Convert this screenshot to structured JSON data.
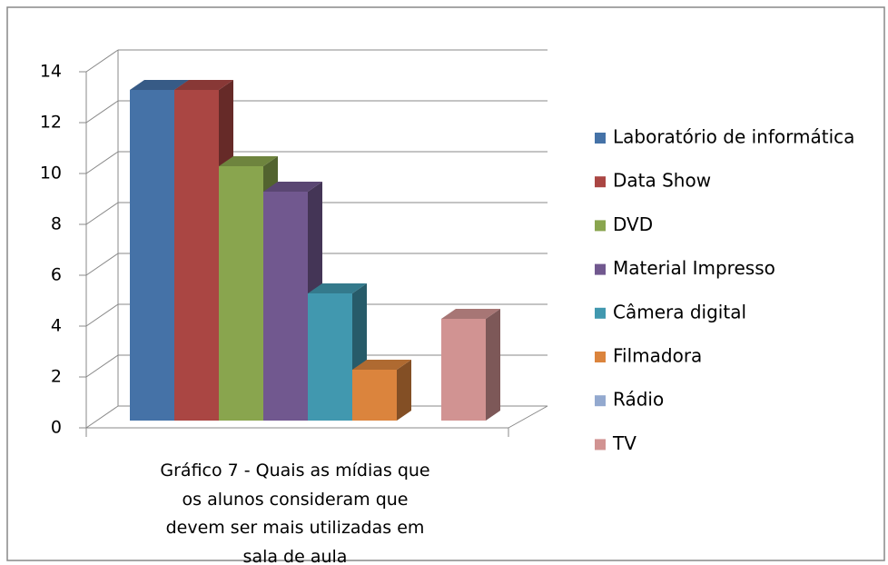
{
  "chart_data": {
    "type": "bar3d",
    "title": "Gráfico 7 - Quais as mídias que os alunos consideram que devem ser mais utilizadas em sala de aula",
    "categories": [
      null
    ],
    "series": [
      {
        "name": "Laboratório de informática",
        "color": "#4572a7",
        "values": [
          13
        ]
      },
      {
        "name": "Data Show",
        "color": "#aa4643",
        "values": [
          13
        ]
      },
      {
        "name": "DVD",
        "color": "#89a54e",
        "values": [
          10
        ]
      },
      {
        "name": "Material Impresso",
        "color": "#71588f",
        "values": [
          9
        ]
      },
      {
        "name": "Câmera digital",
        "color": "#4198af",
        "values": [
          5
        ]
      },
      {
        "name": "Filmadora",
        "color": "#db843d",
        "values": [
          2
        ]
      },
      {
        "name": "Rádio",
        "color": "#93a9cf",
        "values": [
          0
        ]
      },
      {
        "name": "TV",
        "color": "#d19392",
        "values": [
          4
        ]
      }
    ],
    "ylim": [
      0,
      14
    ],
    "yticks": [
      0,
      2,
      4,
      6,
      8,
      10,
      12,
      14
    ],
    "grid": true,
    "legend": "right"
  }
}
